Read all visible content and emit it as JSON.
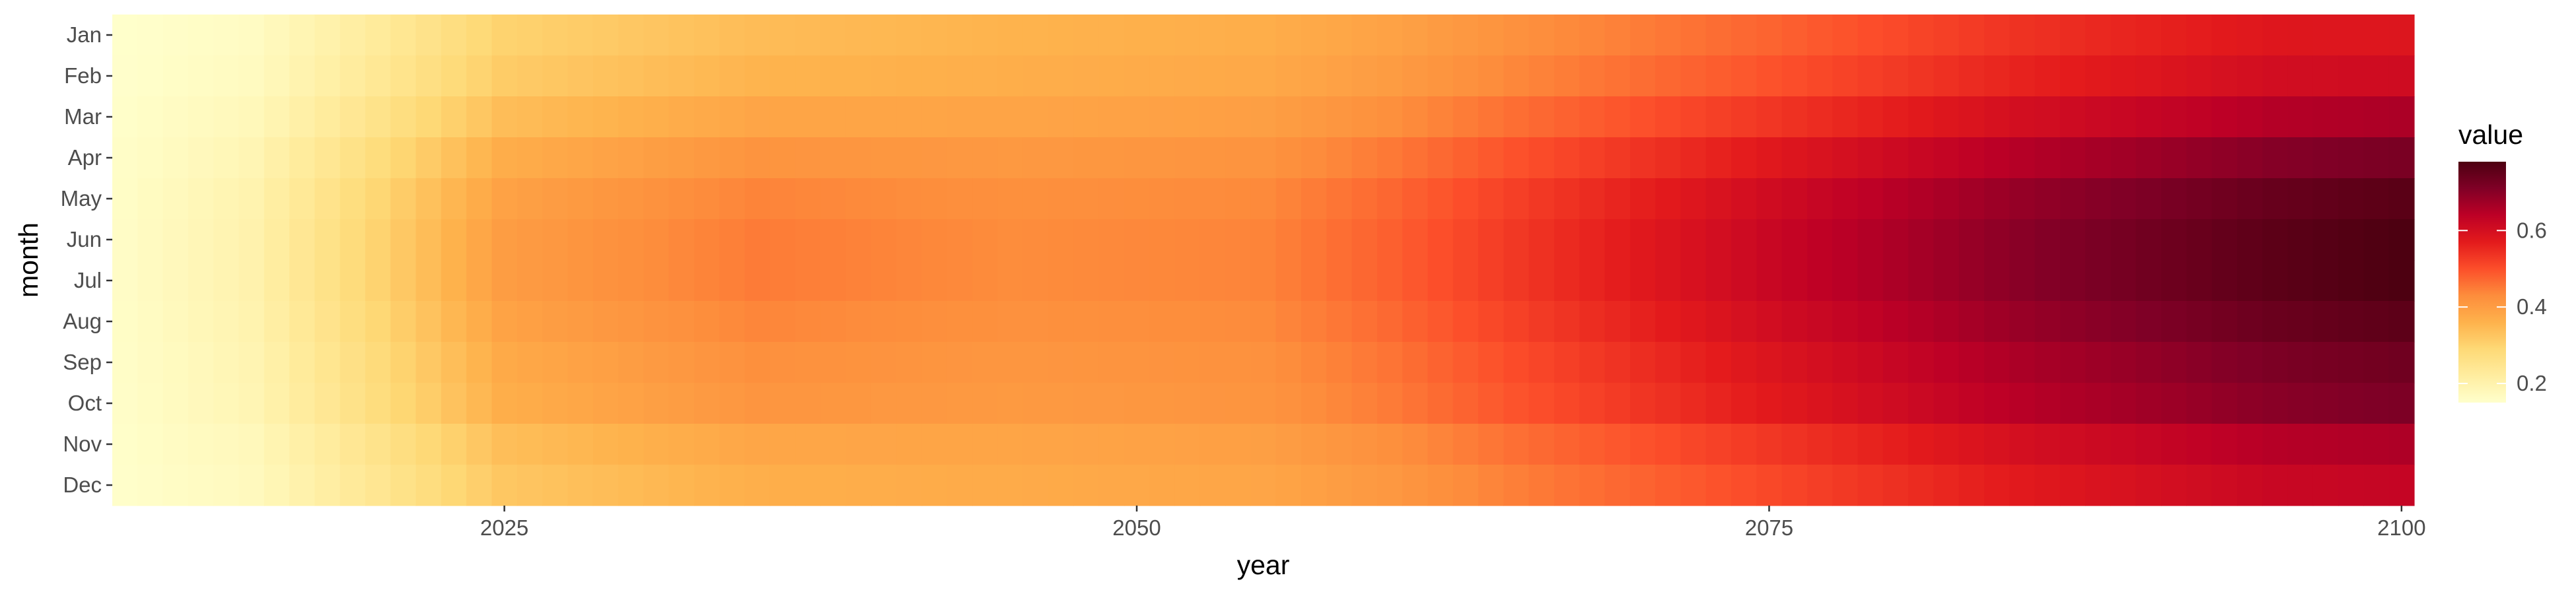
{
  "chart_data": {
    "type": "heatmap",
    "xlabel": "year",
    "ylabel": "month",
    "x_range": [
      2010,
      2100
    ],
    "x_ticks": [
      2025,
      2050,
      2075,
      2100
    ],
    "x_tick_labels": [
      "2025",
      "2050",
      "2075",
      "2100"
    ],
    "months": [
      "Jan",
      "Feb",
      "Mar",
      "Apr",
      "May",
      "Jun",
      "Jul",
      "Aug",
      "Sep",
      "Oct",
      "Nov",
      "Dec"
    ],
    "month_profile": [
      0.1,
      0.22,
      0.45,
      0.72,
      0.92,
      1.0,
      1.0,
      0.9,
      0.78,
      0.7,
      0.44,
      0.3
    ],
    "trend_anchor_years": [
      2010,
      2015,
      2020,
      2025,
      2035,
      2045,
      2055,
      2060,
      2065,
      2075,
      2085,
      2095,
      2100
    ],
    "trend_low": [
      0.15,
      0.16,
      0.22,
      0.29,
      0.33,
      0.35,
      0.36,
      0.38,
      0.41,
      0.46,
      0.52,
      0.56,
      0.56
    ],
    "trend_high": [
      0.16,
      0.2,
      0.3,
      0.4,
      0.45,
      0.43,
      0.44,
      0.48,
      0.53,
      0.62,
      0.7,
      0.76,
      0.78
    ],
    "value_range": [
      0.15,
      0.78
    ],
    "legend": {
      "title": "value",
      "ticks": [
        0.2,
        0.4,
        0.6
      ],
      "tick_labels": [
        "0.2",
        "0.4",
        "0.6"
      ],
      "placement": "right"
    },
    "colors": [
      "#ffffcc",
      "#ffeda0",
      "#fed976",
      "#feb24c",
      "#fd8d3c",
      "#fc4e2a",
      "#e31a1c",
      "#bd0026",
      "#800026",
      "#4d0011"
    ],
    "grid": false
  }
}
